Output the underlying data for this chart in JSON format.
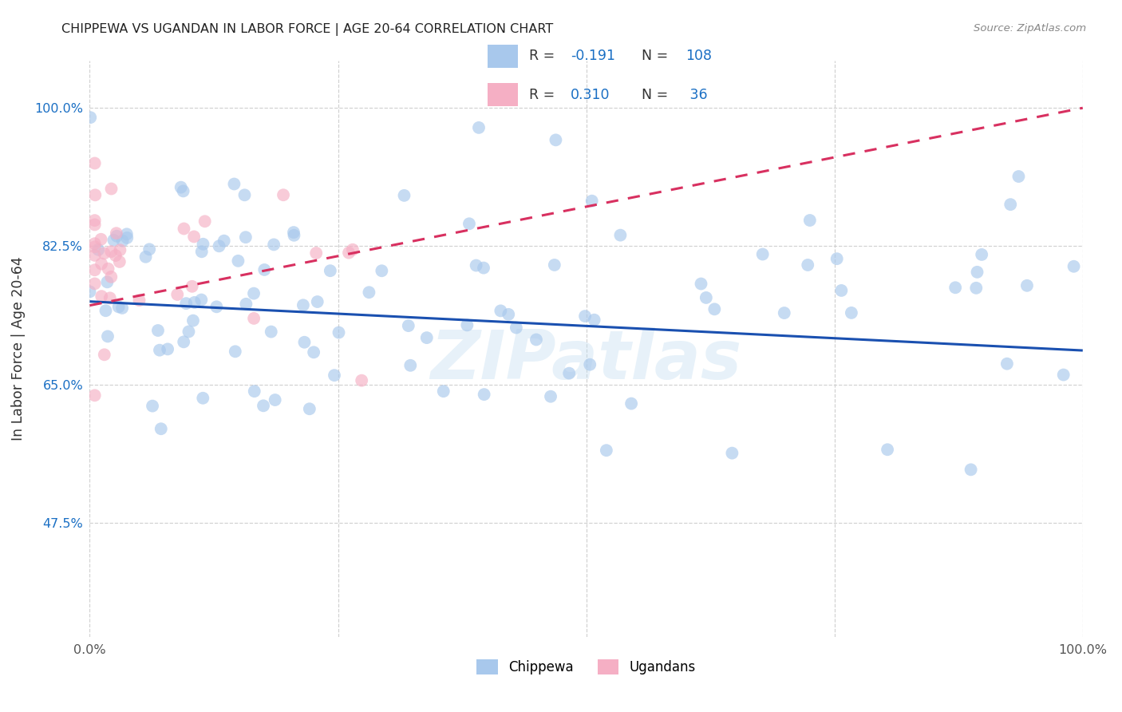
{
  "title": "CHIPPEWA VS UGANDAN IN LABOR FORCE | AGE 20-64 CORRELATION CHART",
  "source": "Source: ZipAtlas.com",
  "ylabel": "In Labor Force | Age 20-64",
  "xlim": [
    0.0,
    1.0
  ],
  "ylim": [
    0.33,
    1.06
  ],
  "x_ticks": [
    0.0,
    0.25,
    0.5,
    0.75,
    1.0
  ],
  "x_tick_labels": [
    "0.0%",
    "",
    "",
    "",
    "100.0%"
  ],
  "y_ticks": [
    0.475,
    0.65,
    0.825,
    1.0
  ],
  "y_tick_labels": [
    "47.5%",
    "65.0%",
    "82.5%",
    "100.0%"
  ],
  "chippewa_color": "#a8c8ec",
  "ugandan_color": "#f5afc4",
  "chippewa_line_color": "#1a50b0",
  "ugandan_line_color": "#d83060",
  "R_chippewa": -0.191,
  "N_chippewa": 108,
  "R_ugandan": 0.31,
  "N_ugandan": 36,
  "watermark_text": "ZIPatlas",
  "background_color": "#ffffff",
  "grid_color": "#cccccc",
  "title_color": "#222222",
  "source_color": "#888888",
  "y_tick_color": "#1a6fc4",
  "x_tick_color": "#555555",
  "legend_text_color": "#333333",
  "legend_val_color": "#1a6fc4",
  "legend_neg_color": "#1a6fc4",
  "marker_size": 130,
  "marker_alpha": 0.65,
  "trend_linewidth": 2.2,
  "chippewa_line_start_y": 0.755,
  "chippewa_line_end_y": 0.693,
  "ugandan_line_start_y": 0.75,
  "ugandan_line_end_y": 1.0,
  "ugandan_line_x_end": 1.0
}
